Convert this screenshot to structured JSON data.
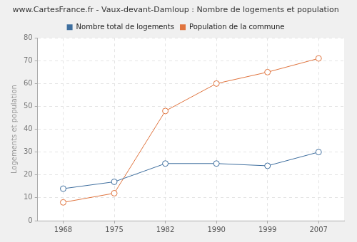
{
  "chart_data": {
    "type": "line",
    "title": "www.CartesFrance.fr - Vaux-devant-Damloup : Nombre de logements et population",
    "y_label": "Logements et population",
    "categories": [
      "1968",
      "1975",
      "1982",
      "1990",
      "1999",
      "2007"
    ],
    "series": [
      {
        "name": "Nombre total de logements",
        "color": "#3f6f9f",
        "marker": "circle",
        "values": [
          14,
          17,
          25,
          25,
          24,
          30
        ]
      },
      {
        "name": "Population de la commune",
        "color": "#e0743e",
        "marker": "circle",
        "values": [
          8,
          12,
          48,
          60,
          65,
          71
        ]
      }
    ],
    "ylim": [
      0,
      80
    ],
    "yticks": [
      0,
      10,
      20,
      30,
      40,
      50,
      60,
      70,
      80
    ],
    "grid": true,
    "legend": "top"
  }
}
